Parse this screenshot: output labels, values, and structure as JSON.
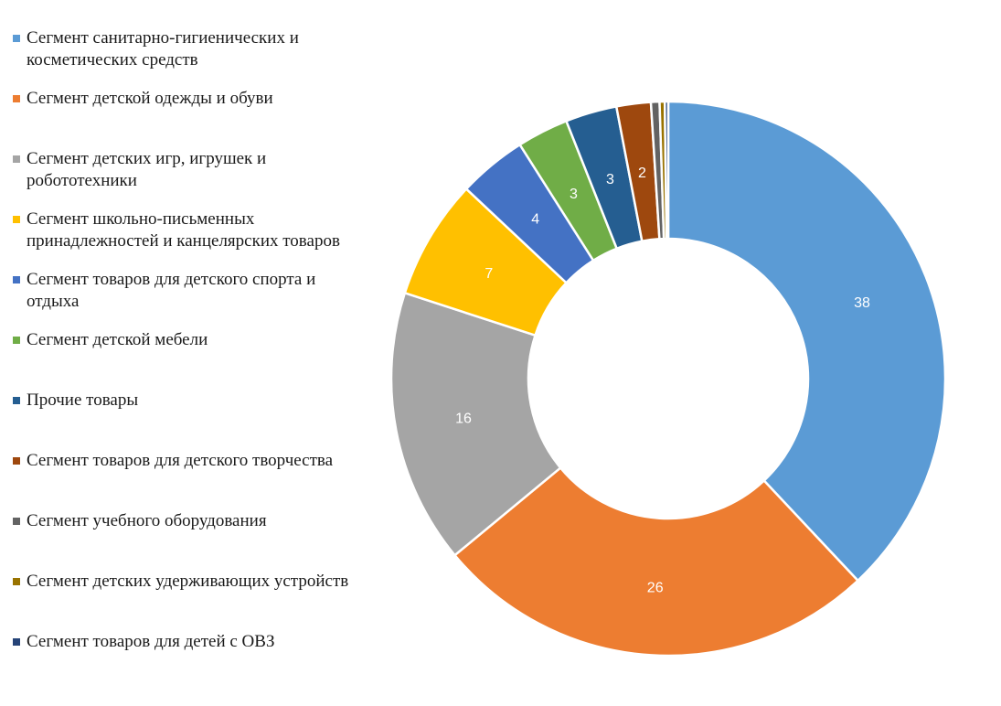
{
  "chart_data": {
    "type": "pie",
    "title": "",
    "legend_position": "left",
    "series": [
      {
        "name": "",
        "categories": [
          "Сегмент санитарно-гигиенических и косметических средств",
          "Сегмент детской одежды и обуви",
          "Сегмент детских игр, игрушек и робототехники",
          "Сегмент школьно-письменных принадлежностей и канцелярских товаров",
          "Сегмент товаров для детского спорта и отдыха",
          "Сегмент детской мебели",
          "Прочие товары",
          "Сегмент товаров для детского творчества",
          "Сегмент учебного оборудования",
          "Сегмент детских удерживающих устройств",
          "Сегмент товаров для детей с ОВЗ"
        ],
        "values": [
          38,
          26,
          16,
          7,
          4,
          3,
          3,
          2,
          0.5,
          0.3,
          0.2
        ],
        "data_labels": [
          "38",
          "26",
          "16",
          "7",
          "4",
          "3",
          "3",
          "2",
          "",
          "",
          ""
        ],
        "colors": [
          "#5B9BD5",
          "#ED7D31",
          "#A5A5A5",
          "#FFC000",
          "#4472C4",
          "#70AD47",
          "#255E91",
          "#9E480E",
          "#636363",
          "#997300",
          "#264478"
        ]
      }
    ],
    "legend": [
      {
        "swatch": "#5B9BD5",
        "lines": [
          "Сегмент санитарно-гигиенических и",
          "косметических средств"
        ]
      },
      {
        "swatch": "#ED7D31",
        "lines": [
          "Сегмент детской одежды и обуви"
        ]
      },
      {
        "swatch": "#A5A5A5",
        "lines": [
          "Сегмент детских игр, игрушек и",
          "робототехники"
        ]
      },
      {
        "swatch": "#FFC000",
        "lines": [
          "Сегмент школьно-письменных",
          "принадлежностей и канцелярских товаров"
        ]
      },
      {
        "swatch": "#4472C4",
        "lines": [
          "Сегмент товаров для детского спорта и",
          "отдыха"
        ]
      },
      {
        "swatch": "#70AD47",
        "lines": [
          "Сегмент детской мебели"
        ]
      },
      {
        "swatch": "#255E91",
        "lines": [
          "Прочие товары"
        ]
      },
      {
        "swatch": "#9E480E",
        "lines": [
          "Сегмент товаров для детского творчества"
        ]
      },
      {
        "swatch": "#636363",
        "lines": [
          "Сегмент учебного оборудования"
        ]
      },
      {
        "swatch": "#997300",
        "lines": [
          "Сегмент детских удерживающих устройств"
        ]
      },
      {
        "swatch": "#264478",
        "lines": [
          "Сегмент товаров для детей с ОВЗ"
        ]
      }
    ]
  }
}
